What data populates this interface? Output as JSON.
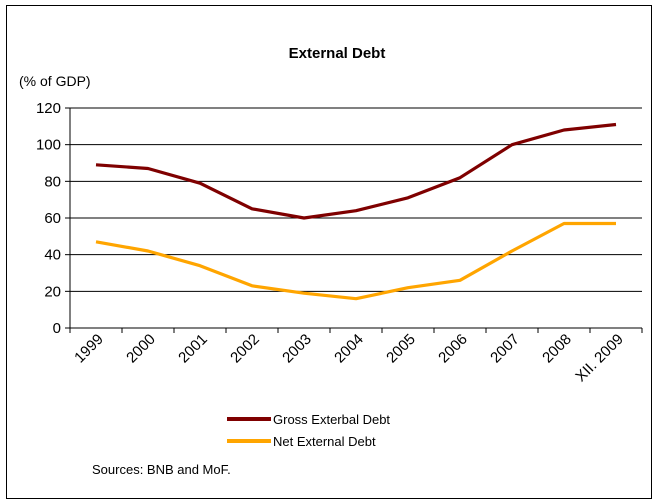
{
  "chart_data": {
    "type": "line",
    "title": "External Debt",
    "unit_label": "(% of GDP)",
    "categories": [
      "1999",
      "2000",
      "2001",
      "2002",
      "2003",
      "2004",
      "2005",
      "2006",
      "2007",
      "2008",
      "XII. 2009"
    ],
    "series": [
      {
        "name": "Gross Exterbal Debt",
        "color": "#7f0000",
        "values": [
          89,
          87,
          79,
          65,
          60,
          64,
          71,
          82,
          100,
          108,
          111
        ]
      },
      {
        "name": "Net External Debt",
        "color": "#ffa500",
        "values": [
          47,
          42,
          34,
          23,
          19,
          16,
          22,
          26,
          42,
          57,
          57
        ]
      }
    ],
    "yticks": [
      0,
      20,
      40,
      60,
      80,
      100,
      120
    ],
    "ylim": [
      0,
      120
    ],
    "grid": true,
    "legend_position": "bottom",
    "source": "Sources: BNB and MoF."
  }
}
